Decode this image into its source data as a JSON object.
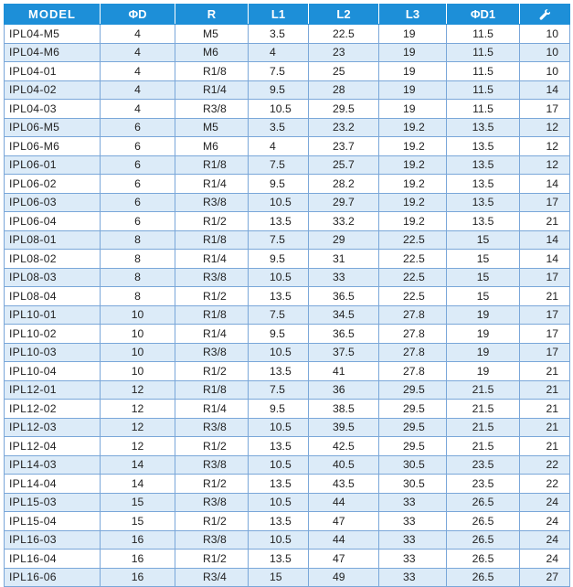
{
  "columns": [
    "MODEL",
    "ΦD",
    "R",
    "L1",
    "L2",
    "L3",
    "ΦD1",
    ""
  ],
  "last_column_icon": "wrench-icon",
  "rows": [
    [
      "IPL04-M5",
      "4",
      "M5",
      "3.5",
      "22.5",
      "19",
      "11.5",
      "10"
    ],
    [
      "IPL04-M6",
      "4",
      "M6",
      "4",
      "23",
      "19",
      "11.5",
      "10"
    ],
    [
      "IPL04-01",
      "4",
      "R1/8",
      "7.5",
      "25",
      "19",
      "11.5",
      "10"
    ],
    [
      "IPL04-02",
      "4",
      "R1/4",
      "9.5",
      "28",
      "19",
      "11.5",
      "14"
    ],
    [
      "IPL04-03",
      "4",
      "R3/8",
      "10.5",
      "29.5",
      "19",
      "11.5",
      "17"
    ],
    [
      "IPL06-M5",
      "6",
      "M5",
      "3.5",
      "23.2",
      "19.2",
      "13.5",
      "12"
    ],
    [
      "IPL06-M6",
      "6",
      "M6",
      "4",
      "23.7",
      "19.2",
      "13.5",
      "12"
    ],
    [
      "IPL06-01",
      "6",
      "R1/8",
      "7.5",
      "25.7",
      "19.2",
      "13.5",
      "12"
    ],
    [
      "IPL06-02",
      "6",
      "R1/4",
      "9.5",
      "28.2",
      "19.2",
      "13.5",
      "14"
    ],
    [
      "IPL06-03",
      "6",
      "R3/8",
      "10.5",
      "29.7",
      "19.2",
      "13.5",
      "17"
    ],
    [
      "IPL06-04",
      "6",
      "R1/2",
      "13.5",
      "33.2",
      "19.2",
      "13.5",
      "21"
    ],
    [
      "IPL08-01",
      "8",
      "R1/8",
      "7.5",
      "29",
      "22.5",
      "15",
      "14"
    ],
    [
      "IPL08-02",
      "8",
      "R1/4",
      "9.5",
      "31",
      "22.5",
      "15",
      "14"
    ],
    [
      "IPL08-03",
      "8",
      "R3/8",
      "10.5",
      "33",
      "22.5",
      "15",
      "17"
    ],
    [
      "IPL08-04",
      "8",
      "R1/2",
      "13.5",
      "36.5",
      "22.5",
      "15",
      "21"
    ],
    [
      "IPL10-01",
      "10",
      "R1/8",
      "7.5",
      "34.5",
      "27.8",
      "19",
      "17"
    ],
    [
      "IPL10-02",
      "10",
      "R1/4",
      "9.5",
      "36.5",
      "27.8",
      "19",
      "17"
    ],
    [
      "IPL10-03",
      "10",
      "R3/8",
      "10.5",
      "37.5",
      "27.8",
      "19",
      "17"
    ],
    [
      "IPL10-04",
      "10",
      "R1/2",
      "13.5",
      "41",
      "27.8",
      "19",
      "21"
    ],
    [
      "IPL12-01",
      "12",
      "R1/8",
      "7.5",
      "36",
      "29.5",
      "21.5",
      "21"
    ],
    [
      "IPL12-02",
      "12",
      "R1/4",
      "9.5",
      "38.5",
      "29.5",
      "21.5",
      "21"
    ],
    [
      "IPL12-03",
      "12",
      "R3/8",
      "10.5",
      "39.5",
      "29.5",
      "21.5",
      "21"
    ],
    [
      "IPL12-04",
      "12",
      "R1/2",
      "13.5",
      "42.5",
      "29.5",
      "21.5",
      "21"
    ],
    [
      "IPL14-03",
      "14",
      "R3/8",
      "10.5",
      "40.5",
      "30.5",
      "23.5",
      "22"
    ],
    [
      "IPL14-04",
      "14",
      "R1/2",
      "13.5",
      "43.5",
      "30.5",
      "23.5",
      "22"
    ],
    [
      "IPL15-03",
      "15",
      "R3/8",
      "10.5",
      "44",
      "33",
      "26.5",
      "24"
    ],
    [
      "IPL15-04",
      "15",
      "R1/2",
      "13.5",
      "47",
      "33",
      "26.5",
      "24"
    ],
    [
      "IPL16-03",
      "16",
      "R3/8",
      "10.5",
      "44",
      "33",
      "26.5",
      "24"
    ],
    [
      "IPL16-04",
      "16",
      "R1/2",
      "13.5",
      "47",
      "33",
      "26.5",
      "24"
    ],
    [
      "IPL16-06",
      "16",
      "R3/4",
      "15",
      "49",
      "33",
      "26.5",
      "27"
    ]
  ],
  "colors": {
    "header_bg": "#1d8fd8",
    "stripe_bg": "#dcebf8",
    "border": "#7aa7d9"
  }
}
